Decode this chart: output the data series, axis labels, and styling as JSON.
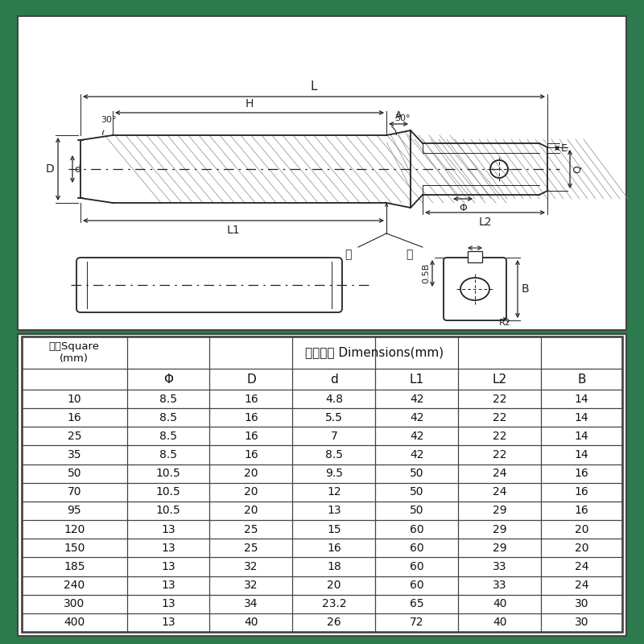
{
  "bg_color": "#2d7a4f",
  "paper_color": "#ffffff",
  "table_header1": "平方Square\n(mm)",
  "table_header2": "主要尺寸 Dimensions(mm)",
  "col_headers": [
    "Φ",
    "D",
    "d",
    "L1",
    "L2",
    "B"
  ],
  "rows": [
    [
      "10",
      "8.5",
      "16",
      "4.8",
      "42",
      "22",
      "14"
    ],
    [
      "16",
      "8.5",
      "16",
      "5.5",
      "42",
      "22",
      "14"
    ],
    [
      "25",
      "8.5",
      "16",
      "7",
      "42",
      "22",
      "14"
    ],
    [
      "35",
      "8.5",
      "16",
      "8.5",
      "42",
      "22",
      "14"
    ],
    [
      "50",
      "10.5",
      "20",
      "9.5",
      "50",
      "24",
      "16"
    ],
    [
      "70",
      "10.5",
      "20",
      "12",
      "50",
      "24",
      "16"
    ],
    [
      "95",
      "10.5",
      "20",
      "13",
      "50",
      "29",
      "16"
    ],
    [
      "120",
      "13",
      "25",
      "15",
      "60",
      "29",
      "20"
    ],
    [
      "150",
      "13",
      "25",
      "16",
      "60",
      "29",
      "20"
    ],
    [
      "185",
      "13",
      "32",
      "18",
      "60",
      "33",
      "24"
    ],
    [
      "240",
      "13",
      "32",
      "20",
      "60",
      "33",
      "24"
    ],
    [
      "300",
      "13",
      "34",
      "23.2",
      "65",
      "40",
      "30"
    ],
    [
      "400",
      "13",
      "40",
      "26",
      "72",
      "40",
      "30"
    ]
  ],
  "line_color": "#222222"
}
